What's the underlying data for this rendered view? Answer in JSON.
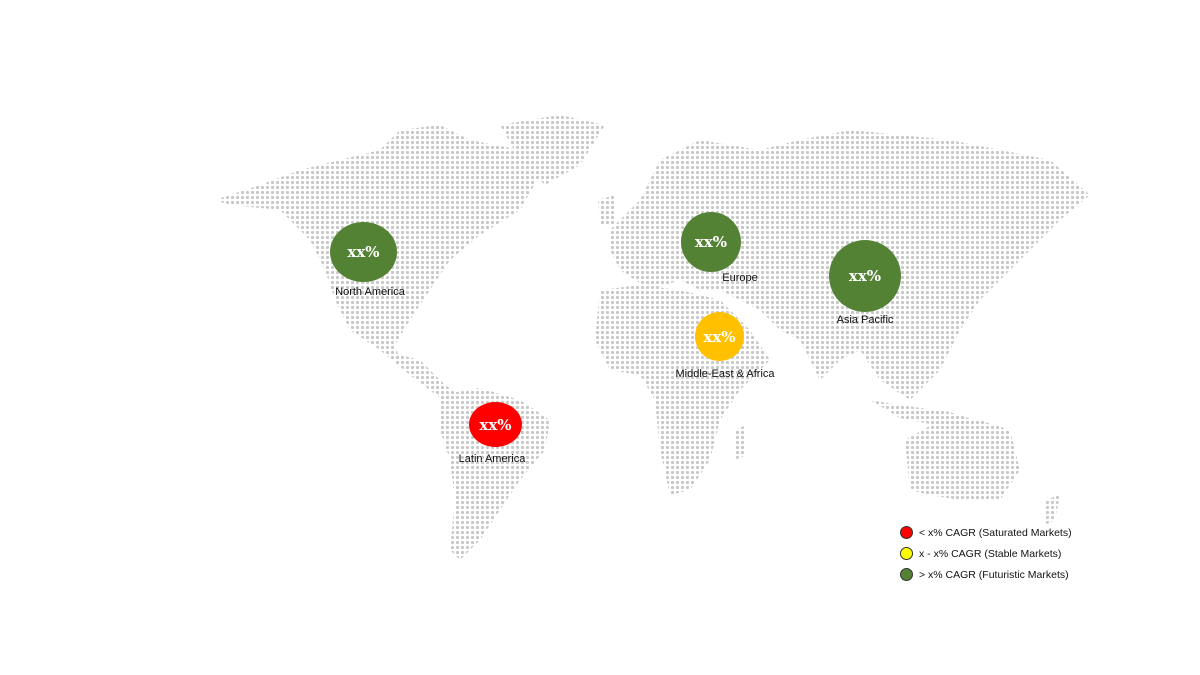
{
  "colors": {
    "futuristic": "#548235",
    "saturated": "#ff0000",
    "stable_bubble": "#ffc000",
    "stable_legend": "#ffff00",
    "map_dots": "#c8c8c8"
  },
  "regions": [
    {
      "name": "North America",
      "value": "xx%",
      "category": "futuristic"
    },
    {
      "name": "Europe",
      "value": "xx%",
      "category": "futuristic"
    },
    {
      "name": "Asia Pacific",
      "value": "xx%",
      "category": "futuristic"
    },
    {
      "name": "Middle-East & Africa",
      "value": "xx%",
      "category": "stable"
    },
    {
      "name": "Latin America",
      "value": "xx%",
      "category": "saturated"
    }
  ],
  "legend": [
    {
      "label": "< x% CAGR (Saturated Markets)",
      "category": "saturated"
    },
    {
      "label": "x - x% CAGR (Stable Markets)",
      "category": "stable"
    },
    {
      "label": "> x% CAGR (Futuristic Markets)",
      "category": "futuristic"
    }
  ]
}
